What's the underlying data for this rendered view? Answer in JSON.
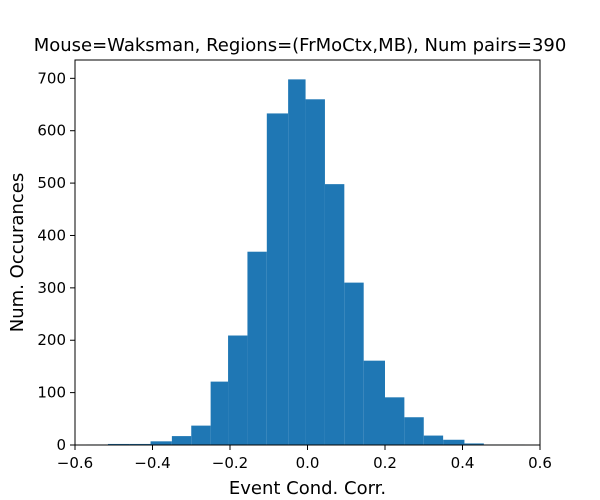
{
  "chart_data": {
    "type": "bar",
    "title": "Mouse=Waksman, Regions=(FrMoCtx,MB), Num pairs=390",
    "xlabel": "Event Cond. Corr.",
    "ylabel": "Num. Occurances",
    "xlim": [
      -0.6,
      0.6
    ],
    "ylim": [
      0,
      735
    ],
    "grid": false,
    "legend": "none",
    "bar_color": "#1f77b4",
    "bins": [
      {
        "x0": -0.57,
        "x1": -0.515,
        "value": 1
      },
      {
        "x0": -0.515,
        "x1": -0.46,
        "value": 2
      },
      {
        "x0": -0.46,
        "x1": -0.405,
        "value": 2
      },
      {
        "x0": -0.405,
        "x1": -0.35,
        "value": 7
      },
      {
        "x0": -0.35,
        "x1": -0.3,
        "value": 17
      },
      {
        "x0": -0.3,
        "x1": -0.25,
        "value": 37
      },
      {
        "x0": -0.25,
        "x1": -0.205,
        "value": 121
      },
      {
        "x0": -0.205,
        "x1": -0.155,
        "value": 209
      },
      {
        "x0": -0.155,
        "x1": -0.105,
        "value": 369
      },
      {
        "x0": -0.105,
        "x1": -0.05,
        "value": 633
      },
      {
        "x0": -0.05,
        "x1": -0.005,
        "value": 698
      },
      {
        "x0": -0.005,
        "x1": 0.045,
        "value": 660
      },
      {
        "x0": 0.045,
        "x1": 0.095,
        "value": 498
      },
      {
        "x0": 0.095,
        "x1": 0.145,
        "value": 310
      },
      {
        "x0": 0.145,
        "x1": 0.2,
        "value": 161
      },
      {
        "x0": 0.2,
        "x1": 0.25,
        "value": 91
      },
      {
        "x0": 0.25,
        "x1": 0.3,
        "value": 53
      },
      {
        "x0": 0.3,
        "x1": 0.35,
        "value": 18
      },
      {
        "x0": 0.35,
        "x1": 0.405,
        "value": 10
      },
      {
        "x0": 0.405,
        "x1": 0.455,
        "value": 3
      },
      {
        "x0": 0.455,
        "x1": 0.505,
        "value": 1
      },
      {
        "x0": 0.505,
        "x1": 0.56,
        "value": 1
      }
    ],
    "x_ticks": [
      {
        "value": -0.6,
        "label": "−0.6"
      },
      {
        "value": -0.4,
        "label": "−0.4"
      },
      {
        "value": -0.2,
        "label": "−0.2"
      },
      {
        "value": 0.0,
        "label": "0.0"
      },
      {
        "value": 0.2,
        "label": "0.2"
      },
      {
        "value": 0.4,
        "label": "0.4"
      },
      {
        "value": 0.6,
        "label": "0.6"
      }
    ],
    "y_ticks": [
      {
        "value": 0,
        "label": "0"
      },
      {
        "value": 100,
        "label": "100"
      },
      {
        "value": 200,
        "label": "200"
      },
      {
        "value": 300,
        "label": "300"
      },
      {
        "value": 400,
        "label": "400"
      },
      {
        "value": 500,
        "label": "500"
      },
      {
        "value": 600,
        "label": "600"
      },
      {
        "value": 700,
        "label": "700"
      }
    ]
  }
}
